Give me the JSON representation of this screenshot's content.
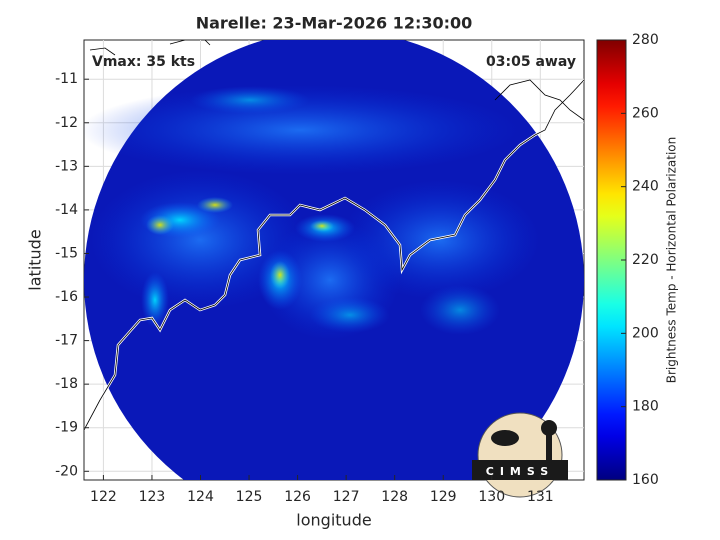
{
  "chart_data": {
    "type": "image",
    "title": "Narelle: 23-Mar-2026 12:30:00",
    "annotations": [
      "Vmax: 35 kts",
      "03:05 away"
    ],
    "xlabel": "longitude",
    "ylabel": "latitude",
    "xlim": [
      121.6,
      131.9
    ],
    "ylim": [
      -20.2,
      -10.1
    ],
    "xticks": [
      122,
      123,
      124,
      125,
      126,
      127,
      128,
      129,
      130,
      131
    ],
    "yticks": [
      -20,
      -19,
      -18,
      -17,
      -16,
      -15,
      -14,
      -13,
      -12,
      -11
    ],
    "grid": true,
    "colorbar": {
      "label": "Brightness Temp - Horizontal Polarization",
      "colormap": "jet",
      "lim": [
        160,
        280
      ],
      "ticks": [
        160,
        180,
        200,
        220,
        240,
        260,
        280
      ]
    },
    "logo": "CIMSS"
  }
}
